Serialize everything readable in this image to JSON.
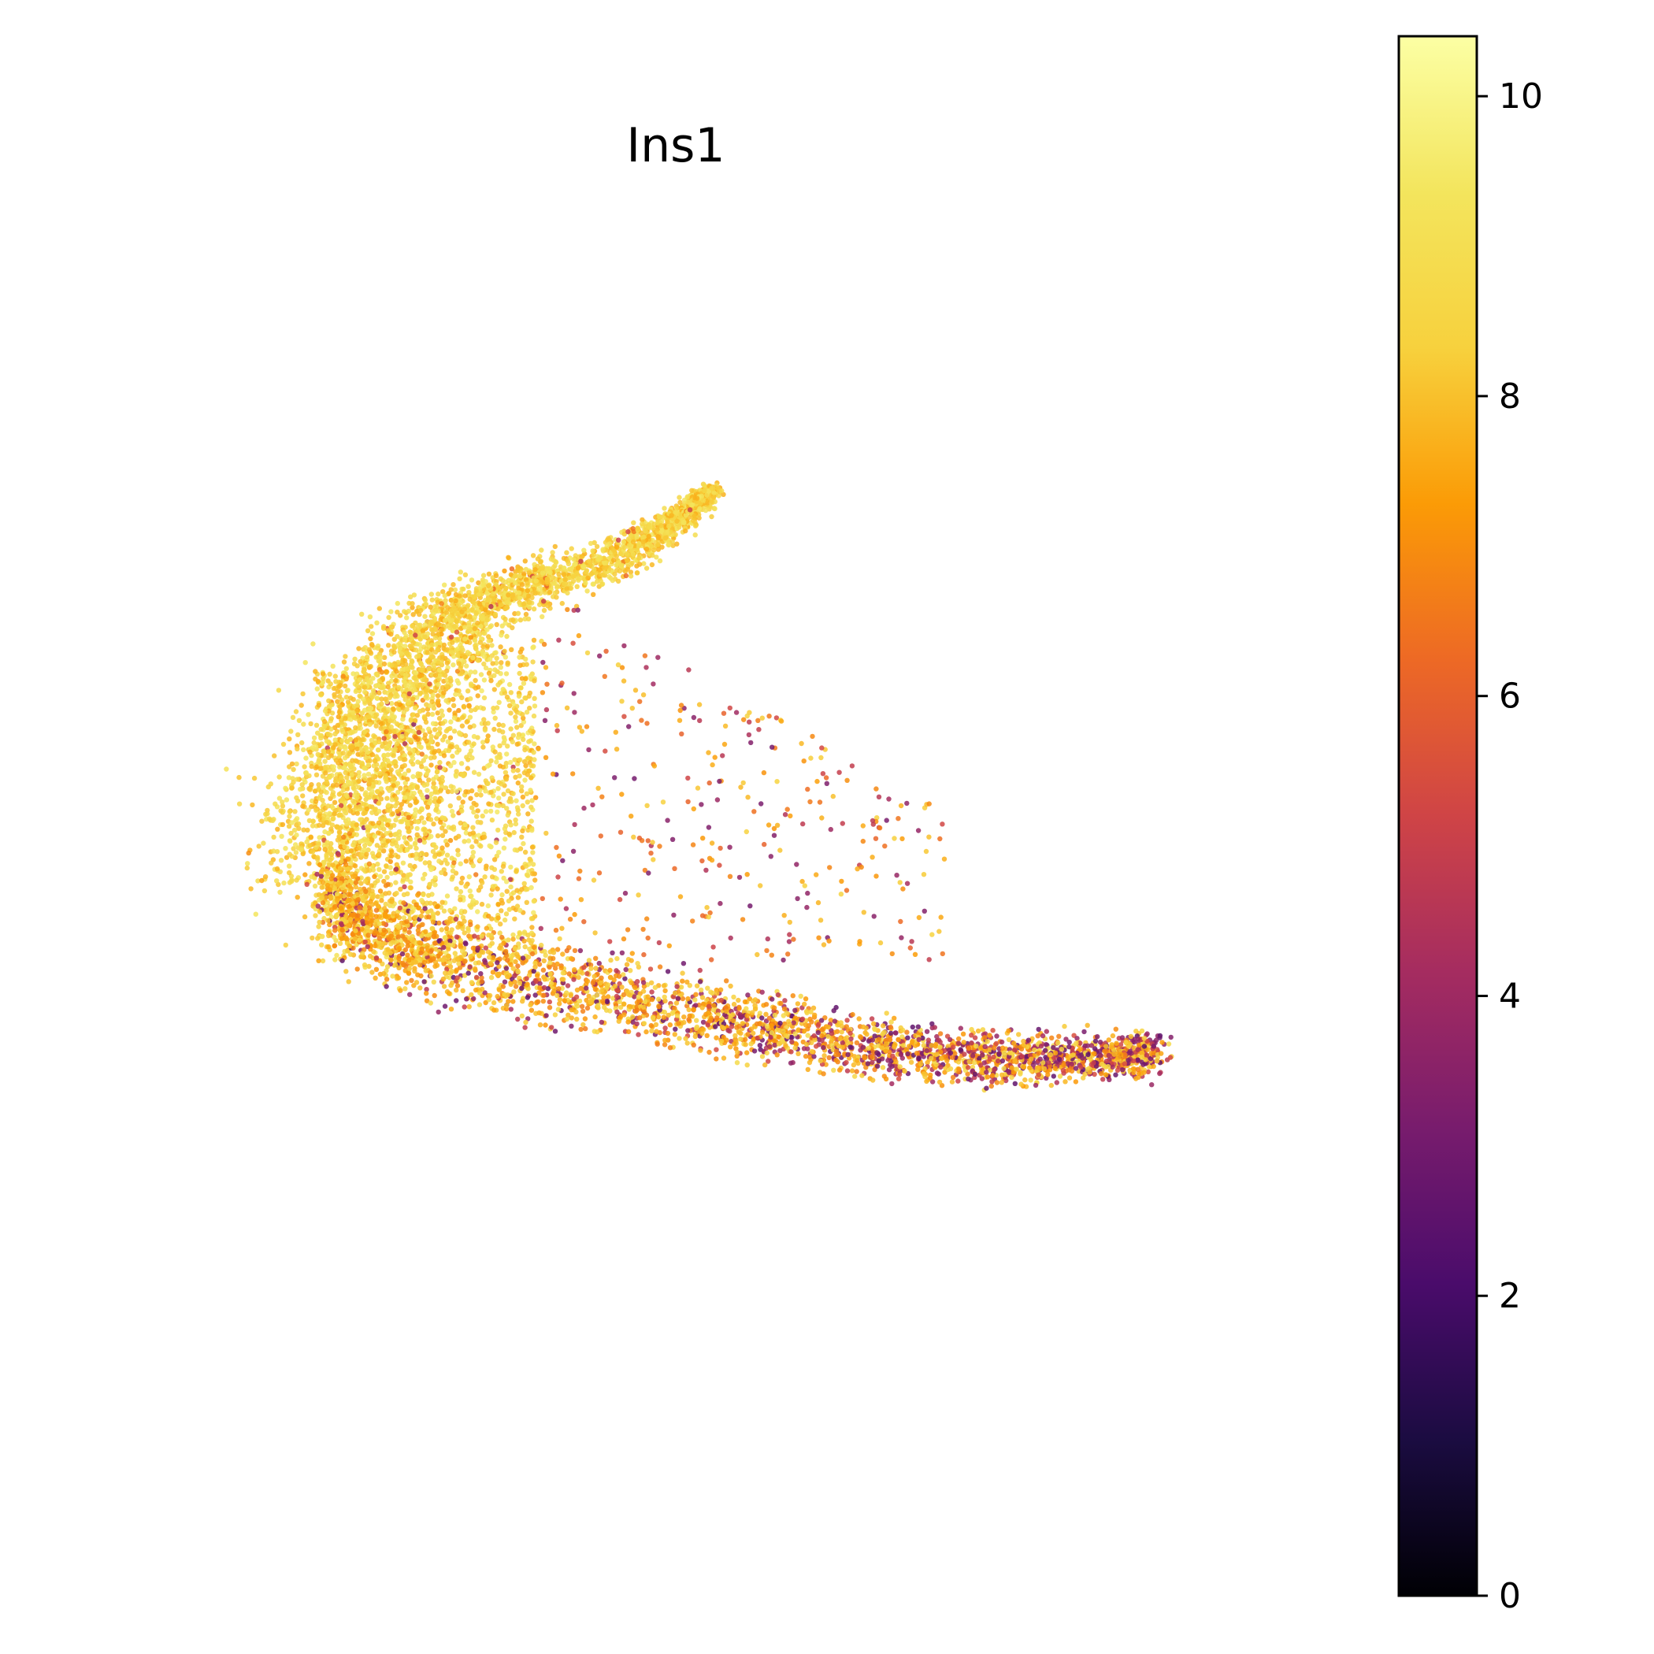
{
  "chart_data": {
    "type": "scatter",
    "title": "Ins1",
    "xlabel": "",
    "ylabel": "",
    "axes_visible": false,
    "grid": false,
    "legend": "none",
    "colorbar": {
      "colormap": "inferno",
      "vmin": 0,
      "vmax": 10.4,
      "position": "right",
      "ticks": [
        0,
        2,
        4,
        6,
        8,
        10
      ],
      "tick_labels": [
        "0",
        "2",
        "4",
        "6",
        "8",
        "10"
      ]
    },
    "point_color_high": "#fca50a",
    "point_color_low": "#4a0c6b",
    "regions": [
      {
        "x": [
          -3.6,
          -0.2
        ],
        "y": [
          -2.6,
          2.7
        ],
        "value_range": [
          7.5,
          9.5
        ]
      },
      {
        "x": [
          -0.2,
          3.2
        ],
        "y": [
          -3.3,
          -0.8
        ],
        "value_range": [
          3.0,
          8.5
        ]
      },
      {
        "x": [
          -1.2,
          1.4
        ],
        "y": [
          -1.2,
          1.7
        ],
        "value_range": [
          4.0,
          8.5
        ]
      }
    ]
  }
}
